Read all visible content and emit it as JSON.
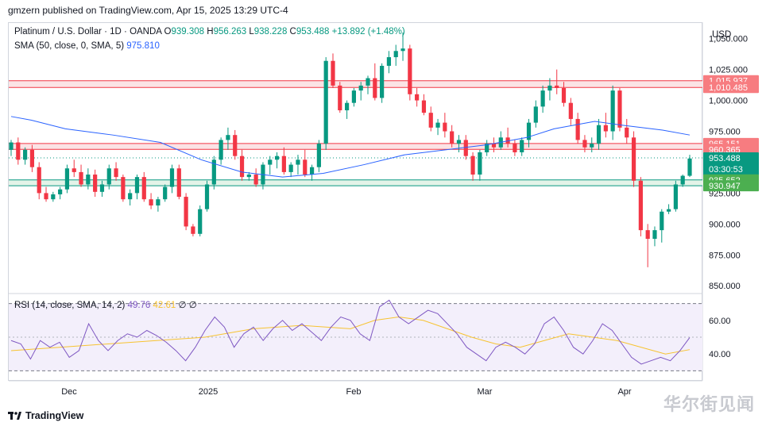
{
  "header": {
    "published_text": "gmzern published on TradingView.com, Apr 15, 2025 13:29 UTC-4"
  },
  "legend": {
    "symbol": "Platinum / U.S. Dollar · 1D · OANDA",
    "o_label": "O",
    "o_value": "939.308",
    "h_label": "H",
    "h_value": "956.263",
    "l_label": "L",
    "l_value": "938.228",
    "c_label": "C",
    "c_value": "953.488",
    "change": "+13.892 (+1.48%)",
    "sma_label": "SMA (50, close, 0, SMA, 5)",
    "sma_value": "975.810",
    "rsi_label": "RSI (14, close, SMA, 14, 2)",
    "rsi_value": "49.76",
    "rsi_sma_value": "42.61",
    "rsi_extra": "∅ ∅"
  },
  "currency": "USD",
  "footer": {
    "brand": "TradingView",
    "logo_icon": "tradingview-logo-icon"
  },
  "watermark": "华尔街见闻",
  "colors": {
    "up": "#089981",
    "down": "#f23645",
    "sma": "#2962ff",
    "rsi": "#7e57c2",
    "rsi_sma": "#f7c331",
    "resistance_fill": "#fbe3e5",
    "support_fill": "#e3f3e8"
  },
  "chart_data": {
    "type": "candlestick",
    "x_ticks": [
      "Dec",
      "2025",
      "Feb",
      "Mar",
      "Apr"
    ],
    "y_ticks": [
      "850.000",
      "875.000",
      "900.000",
      "925.000",
      "950.000",
      "975.000",
      "1,000.000",
      "1,025.000",
      "1,050.000"
    ],
    "ylim": [
      845,
      1062
    ],
    "price_labels": [
      {
        "value": 1015.937,
        "text": "1,015.937",
        "kind": "resistance"
      },
      {
        "value": 1010.485,
        "text": "1,010.485",
        "kind": "resistance"
      },
      {
        "value": 965.151,
        "text": "965.151",
        "kind": "resistance"
      },
      {
        "value": 960.365,
        "text": "960.365",
        "kind": "resistance"
      },
      {
        "value": 953.488,
        "text": "953.488",
        "kind": "last",
        "countdown": "03:30:53"
      },
      {
        "value": 935.652,
        "text": "935.652",
        "kind": "support"
      },
      {
        "value": 930.947,
        "text": "930.947",
        "kind": "support"
      }
    ],
    "zones": [
      {
        "from": 1010.485,
        "to": 1015.937,
        "kind": "resistance"
      },
      {
        "from": 960.365,
        "to": 965.151,
        "kind": "resistance"
      },
      {
        "from": 930.947,
        "to": 935.652,
        "kind": "support"
      }
    ],
    "candles": [
      [
        960,
        968,
        955,
        966
      ],
      [
        966,
        970,
        948,
        952
      ],
      [
        952,
        962,
        948,
        960
      ],
      [
        960,
        964,
        942,
        946
      ],
      [
        946,
        950,
        920,
        925
      ],
      [
        925,
        930,
        918,
        920
      ],
      [
        920,
        926,
        918,
        924
      ],
      [
        924,
        930,
        920,
        928
      ],
      [
        928,
        948,
        925,
        945
      ],
      [
        945,
        952,
        938,
        942
      ],
      [
        942,
        948,
        930,
        932
      ],
      [
        932,
        945,
        928,
        940
      ],
      [
        940,
        944,
        922,
        926
      ],
      [
        926,
        935,
        922,
        932
      ],
      [
        932,
        948,
        928,
        945
      ],
      [
        945,
        950,
        935,
        938
      ],
      [
        938,
        940,
        918,
        920
      ],
      [
        920,
        928,
        915,
        925
      ],
      [
        925,
        940,
        920,
        938
      ],
      [
        938,
        942,
        918,
        920
      ],
      [
        920,
        925,
        912,
        915
      ],
      [
        915,
        922,
        910,
        920
      ],
      [
        920,
        932,
        918,
        930
      ],
      [
        930,
        948,
        925,
        945
      ],
      [
        945,
        948,
        920,
        922
      ],
      [
        922,
        925,
        895,
        898
      ],
      [
        898,
        900,
        890,
        892
      ],
      [
        892,
        915,
        890,
        912
      ],
      [
        912,
        935,
        910,
        932
      ],
      [
        932,
        955,
        928,
        952
      ],
      [
        952,
        970,
        948,
        968
      ],
      [
        968,
        978,
        960,
        972
      ],
      [
        972,
        976,
        952,
        955
      ],
      [
        955,
        960,
        935,
        938
      ],
      [
        938,
        942,
        935,
        940
      ],
      [
        940,
        945,
        930,
        932
      ],
      [
        932,
        950,
        928,
        948
      ],
      [
        948,
        955,
        940,
        952
      ],
      [
        952,
        958,
        945,
        955
      ],
      [
        955,
        962,
        940,
        942
      ],
      [
        942,
        950,
        938,
        948
      ],
      [
        948,
        956,
        940,
        952
      ],
      [
        952,
        960,
        938,
        940
      ],
      [
        940,
        948,
        935,
        946
      ],
      [
        946,
        968,
        942,
        965
      ],
      [
        965,
        1035,
        960,
        1032
      ],
      [
        1032,
        1038,
        1010,
        1012
      ],
      [
        1012,
        1015,
        990,
        992
      ],
      [
        992,
        1000,
        985,
        998
      ],
      [
        998,
        1010,
        995,
        1008
      ],
      [
        1008,
        1015,
        1000,
        1012
      ],
      [
        1012,
        1020,
        1005,
        1018
      ],
      [
        1018,
        1030,
        1000,
        1002
      ],
      [
        1002,
        1030,
        998,
        1028
      ],
      [
        1028,
        1040,
        1022,
        1035
      ],
      [
        1035,
        1045,
        1028,
        1040
      ],
      [
        1040,
        1055,
        1032,
        1042
      ],
      [
        1042,
        1045,
        1000,
        1005
      ],
      [
        1005,
        1010,
        995,
        1000
      ],
      [
        1000,
        1005,
        988,
        990
      ],
      [
        990,
        995,
        975,
        978
      ],
      [
        978,
        985,
        972,
        982
      ],
      [
        982,
        990,
        970,
        975
      ],
      [
        975,
        980,
        962,
        965
      ],
      [
        965,
        972,
        958,
        968
      ],
      [
        968,
        972,
        952,
        955
      ],
      [
        955,
        958,
        935,
        940
      ],
      [
        940,
        960,
        935,
        958
      ],
      [
        958,
        968,
        955,
        965
      ],
      [
        965,
        970,
        958,
        962
      ],
      [
        962,
        975,
        960,
        970
      ],
      [
        970,
        978,
        962,
        965
      ],
      [
        965,
        968,
        955,
        958
      ],
      [
        958,
        970,
        955,
        968
      ],
      [
        968,
        985,
        962,
        982
      ],
      [
        982,
        1000,
        978,
        995
      ],
      [
        995,
        1012,
        990,
        1008
      ],
      [
        1008,
        1018,
        1000,
        1012
      ],
      [
        1012,
        1025,
        1005,
        1010
      ],
      [
        1010,
        1015,
        995,
        998
      ],
      [
        998,
        1002,
        980,
        985
      ],
      [
        985,
        990,
        965,
        968
      ],
      [
        968,
        972,
        958,
        962
      ],
      [
        962,
        970,
        958,
        965
      ],
      [
        965,
        985,
        960,
        980
      ],
      [
        980,
        990,
        970,
        975
      ],
      [
        975,
        1012,
        968,
        1008
      ],
      [
        1008,
        1010,
        975,
        978
      ],
      [
        978,
        985,
        965,
        970
      ],
      [
        970,
        975,
        930,
        935
      ],
      [
        935,
        938,
        890,
        895
      ],
      [
        895,
        900,
        865,
        888
      ],
      [
        888,
        898,
        882,
        895
      ],
      [
        895,
        912,
        885,
        910
      ],
      [
        910,
        916,
        908,
        912
      ],
      [
        912,
        935,
        910,
        932
      ],
      [
        932,
        940,
        930,
        939
      ],
      [
        939,
        956,
        938,
        953
      ]
    ],
    "sma": [
      [
        0,
        987
      ],
      [
        3,
        984
      ],
      [
        8,
        977
      ],
      [
        15,
        972
      ],
      [
        22,
        966
      ],
      [
        28,
        952
      ],
      [
        34,
        942
      ],
      [
        40,
        938
      ],
      [
        46,
        941
      ],
      [
        52,
        948
      ],
      [
        58,
        956
      ],
      [
        64,
        960
      ],
      [
        70,
        964
      ],
      [
        76,
        970
      ],
      [
        80,
        977
      ],
      [
        86,
        983
      ],
      [
        90,
        980
      ],
      [
        96,
        976
      ],
      [
        100,
        972
      ]
    ],
    "rsi": {
      "ylim": [
        25,
        75
      ],
      "y_ticks": [
        "40.00",
        "60.00"
      ],
      "bands": [
        30,
        70
      ],
      "mid": 50,
      "values": [
        [
          0,
          48
        ],
        [
          4,
          46
        ],
        [
          8,
          37
        ],
        [
          12,
          48
        ],
        [
          16,
          44
        ],
        [
          20,
          47
        ],
        [
          24,
          38
        ],
        [
          28,
          42
        ],
        [
          32,
          58
        ],
        [
          36,
          48
        ],
        [
          40,
          42
        ],
        [
          44,
          48
        ],
        [
          48,
          52
        ],
        [
          52,
          50
        ],
        [
          56,
          54
        ],
        [
          60,
          51
        ],
        [
          64,
          47
        ],
        [
          68,
          42
        ],
        [
          72,
          36
        ],
        [
          76,
          44
        ],
        [
          80,
          54
        ],
        [
          84,
          62
        ],
        [
          88,
          56
        ],
        [
          92,
          44
        ],
        [
          96,
          52
        ],
        [
          100,
          56
        ],
        [
          104,
          48
        ],
        [
          108,
          55
        ],
        [
          112,
          60
        ],
        [
          116,
          54
        ],
        [
          120,
          58
        ],
        [
          124,
          53
        ],
        [
          128,
          48
        ],
        [
          132,
          56
        ],
        [
          136,
          62
        ],
        [
          140,
          60
        ],
        [
          144,
          52
        ],
        [
          148,
          48
        ],
        [
          152,
          68
        ],
        [
          156,
          72
        ],
        [
          160,
          62
        ],
        [
          164,
          58
        ],
        [
          168,
          62
        ],
        [
          172,
          66
        ],
        [
          176,
          64
        ],
        [
          180,
          58
        ],
        [
          184,
          52
        ],
        [
          188,
          44
        ],
        [
          192,
          40
        ],
        [
          196,
          36
        ],
        [
          200,
          44
        ],
        [
          204,
          47
        ],
        [
          208,
          44
        ],
        [
          212,
          40
        ],
        [
          216,
          46
        ],
        [
          220,
          58
        ],
        [
          224,
          62
        ],
        [
          228,
          54
        ],
        [
          232,
          44
        ],
        [
          236,
          40
        ],
        [
          240,
          48
        ],
        [
          244,
          58
        ],
        [
          248,
          54
        ],
        [
          252,
          46
        ],
        [
          256,
          38
        ],
        [
          260,
          34
        ],
        [
          264,
          36
        ],
        [
          268,
          38
        ],
        [
          272,
          36
        ],
        [
          276,
          42
        ],
        [
          280,
          49.8
        ]
      ],
      "sma_values": [
        [
          0,
          42
        ],
        [
          20,
          44
        ],
        [
          40,
          46
        ],
        [
          60,
          48
        ],
        [
          80,
          50
        ],
        [
          100,
          55
        ],
        [
          120,
          57
        ],
        [
          140,
          55
        ],
        [
          150,
          60
        ],
        [
          160,
          62
        ],
        [
          170,
          60
        ],
        [
          180,
          55
        ],
        [
          190,
          50
        ],
        [
          200,
          46
        ],
        [
          210,
          44
        ],
        [
          220,
          48
        ],
        [
          230,
          52
        ],
        [
          240,
          50
        ],
        [
          250,
          48
        ],
        [
          260,
          44
        ],
        [
          270,
          40
        ],
        [
          280,
          42.6
        ]
      ]
    }
  }
}
